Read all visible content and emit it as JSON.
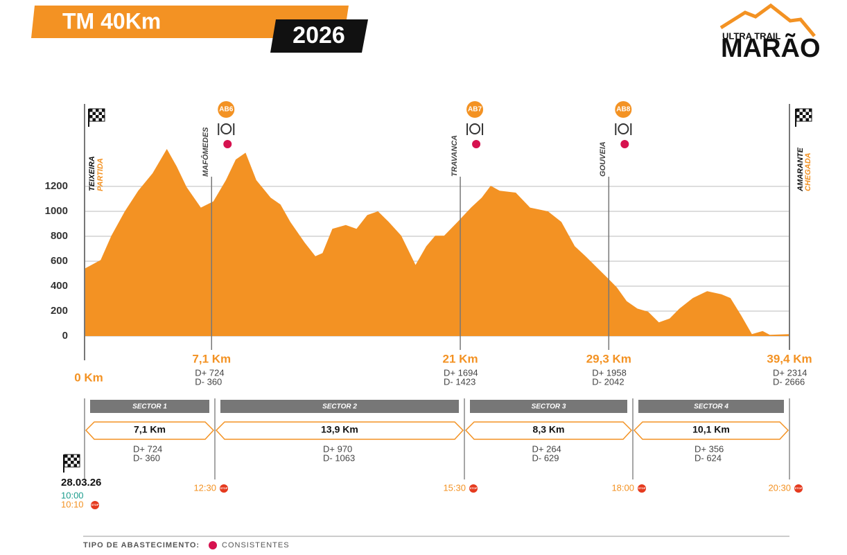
{
  "chart_data": {
    "type": "area",
    "title": "TM 40Km",
    "subtitle": "2026",
    "logo": {
      "top": "ULTRA TRAIL",
      "main": "MARÃO"
    },
    "color": "#f39223",
    "xlim": [
      0,
      39.4
    ],
    "ylim": [
      0,
      1500
    ],
    "yticks": [
      0,
      200,
      400,
      600,
      800,
      1000,
      1200
    ],
    "grid": true,
    "x": [
      0,
      0.9,
      1.5,
      2.25,
      3.0,
      3.8,
      4.6,
      5.15,
      5.7,
      6.5,
      7.2,
      7.9,
      8.45,
      9.0,
      9.6,
      10.4,
      10.95,
      11.5,
      12.3,
      12.9,
      13.3,
      13.85,
      14.6,
      15.2,
      15.8,
      16.4,
      17.0,
      17.7,
      18.5,
      19.1,
      19.6,
      20.1,
      20.85,
      21.6,
      22.2,
      22.7,
      23.2,
      24.1,
      24.9,
      25.9,
      26.65,
      27.4,
      28.0,
      28.6,
      29.2,
      29.75,
      30.3,
      30.9,
      31.5,
      32.1,
      32.7,
      33.25,
      34.0,
      34.8,
      35.6,
      36.1,
      36.7,
      37.3,
      37.9,
      38.3,
      39.4
    ],
    "values": [
      540,
      610,
      805,
      1000,
      1165,
      1305,
      1500,
      1360,
      1195,
      1030,
      1080,
      1250,
      1415,
      1470,
      1250,
      1110,
      1055,
      915,
      750,
      640,
      665,
      860,
      890,
      860,
      970,
      1000,
      915,
      805,
      570,
      720,
      805,
      805,
      915,
      1030,
      1110,
      1205,
      1165,
      1150,
      1030,
      1000,
      915,
      720,
      640,
      555,
      470,
      390,
      280,
      220,
      195,
      110,
      140,
      220,
      305,
      360,
      335,
      305,
      165,
      15,
      40,
      10,
      15
    ],
    "start": {
      "x": 0,
      "place": "TEIXEIRA",
      "label": "PARTIDA",
      "km": "0 Km"
    },
    "finish": {
      "x": 39.4,
      "place": "AMARANTE",
      "label": "CHEGADA",
      "km": "39,4 Km",
      "dplus": "D+ 2314",
      "dminus": "D- 2666"
    },
    "checkpoints": [
      {
        "x": 7.1,
        "km": "7,1 Km",
        "place": "MAFÔMEDES",
        "ab": "AB6",
        "dplus": "D+ 724",
        "dminus": "D- 360"
      },
      {
        "x": 21,
        "km": "21 Km",
        "place": "TRAVANCA",
        "ab": "AB7",
        "dplus": "D+ 1694",
        "dminus": "D- 1423"
      },
      {
        "x": 29.3,
        "km": "29,3 Km",
        "place": "GOUVEIA",
        "ab": "AB8",
        "dplus": "D+ 1958",
        "dminus": "D- 2042"
      }
    ],
    "sectors": [
      {
        "name": "SECTOR 1",
        "distance": "7,1 Km",
        "dplus": "D+ 724",
        "dminus": "D- 360",
        "time": "12:30"
      },
      {
        "name": "SECTOR 2",
        "distance": "13,9 Km",
        "dplus": "D+ 970",
        "dminus": "D- 1063",
        "time": "15:30"
      },
      {
        "name": "SECTOR 3",
        "distance": "8,3 Km",
        "dplus": "D+ 264",
        "dminus": "D- 629",
        "time": "18:00"
      },
      {
        "name": "SECTOR 4",
        "distance": "10,1  Km",
        "dplus": "D+ 356",
        "dminus": "D- 624",
        "time": "20:30"
      }
    ],
    "start_info": {
      "date": "28.03.26",
      "time": "10:00",
      "cutoff": "10:10"
    },
    "stop": "STOP",
    "legend": {
      "title": "TIPO DE ABASTECIMENTO:",
      "label": "CONSISTENTES",
      "color": "#d6124f"
    }
  }
}
